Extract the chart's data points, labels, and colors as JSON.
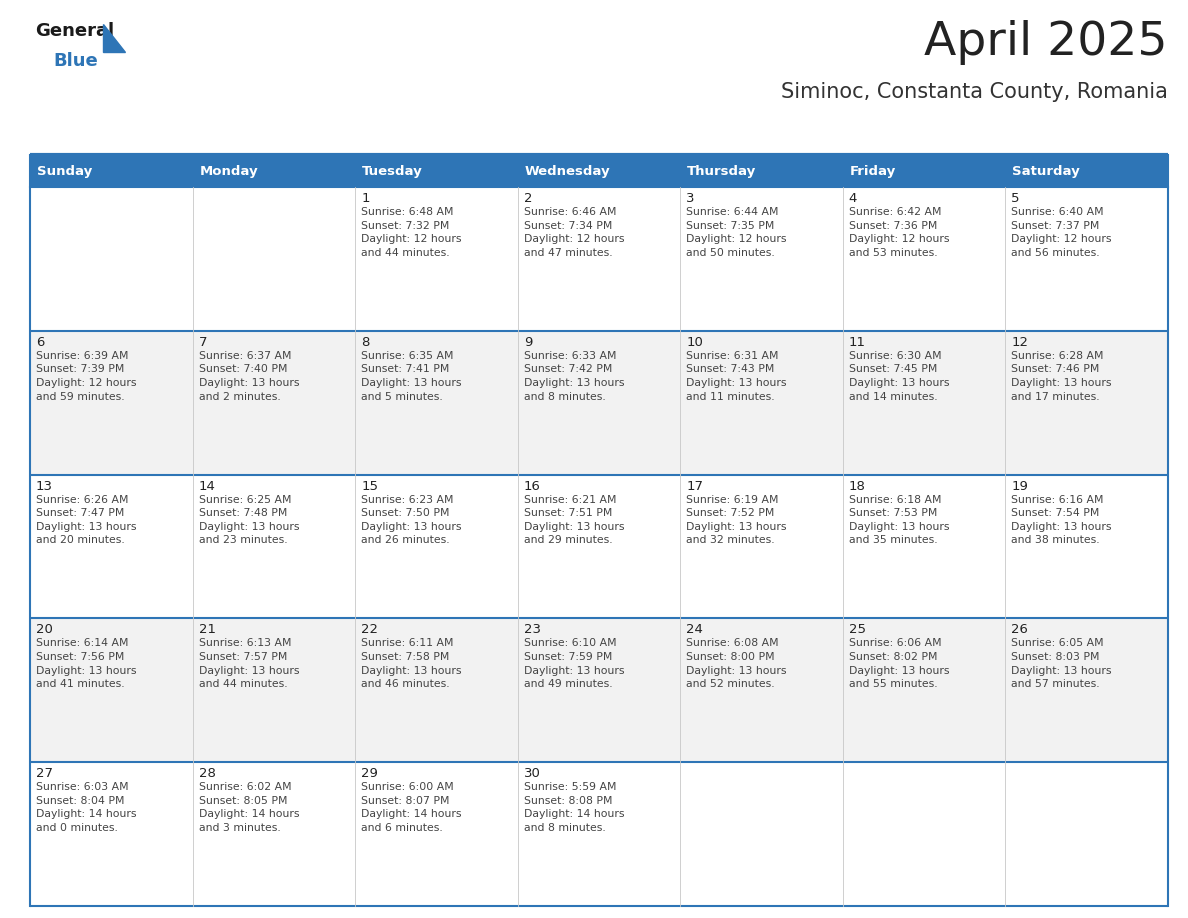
{
  "title": "April 2025",
  "subtitle": "Siminoc, Constanta County, Romania",
  "header_bg_color": "#2E75B6",
  "header_text_color": "#FFFFFF",
  "border_color": "#2E75B6",
  "row_colors": [
    "#FFFFFF",
    "#F2F2F2",
    "#FFFFFF",
    "#F2F2F2",
    "#FFFFFF"
  ],
  "day_headers": [
    "Sunday",
    "Monday",
    "Tuesday",
    "Wednesday",
    "Thursday",
    "Friday",
    "Saturday"
  ],
  "title_color": "#222222",
  "subtitle_color": "#333333",
  "cell_text_color": "#444444",
  "day_num_color": "#222222",
  "logo_general_color": "#1a1a1a",
  "logo_blue_color": "#2E75B6",
  "logo_triangle_color": "#2E75B6",
  "weeks": [
    [
      {
        "day": "",
        "info": ""
      },
      {
        "day": "",
        "info": ""
      },
      {
        "day": "1",
        "info": "Sunrise: 6:48 AM\nSunset: 7:32 PM\nDaylight: 12 hours\nand 44 minutes."
      },
      {
        "day": "2",
        "info": "Sunrise: 6:46 AM\nSunset: 7:34 PM\nDaylight: 12 hours\nand 47 minutes."
      },
      {
        "day": "3",
        "info": "Sunrise: 6:44 AM\nSunset: 7:35 PM\nDaylight: 12 hours\nand 50 minutes."
      },
      {
        "day": "4",
        "info": "Sunrise: 6:42 AM\nSunset: 7:36 PM\nDaylight: 12 hours\nand 53 minutes."
      },
      {
        "day": "5",
        "info": "Sunrise: 6:40 AM\nSunset: 7:37 PM\nDaylight: 12 hours\nand 56 minutes."
      }
    ],
    [
      {
        "day": "6",
        "info": "Sunrise: 6:39 AM\nSunset: 7:39 PM\nDaylight: 12 hours\nand 59 minutes."
      },
      {
        "day": "7",
        "info": "Sunrise: 6:37 AM\nSunset: 7:40 PM\nDaylight: 13 hours\nand 2 minutes."
      },
      {
        "day": "8",
        "info": "Sunrise: 6:35 AM\nSunset: 7:41 PM\nDaylight: 13 hours\nand 5 minutes."
      },
      {
        "day": "9",
        "info": "Sunrise: 6:33 AM\nSunset: 7:42 PM\nDaylight: 13 hours\nand 8 minutes."
      },
      {
        "day": "10",
        "info": "Sunrise: 6:31 AM\nSunset: 7:43 PM\nDaylight: 13 hours\nand 11 minutes."
      },
      {
        "day": "11",
        "info": "Sunrise: 6:30 AM\nSunset: 7:45 PM\nDaylight: 13 hours\nand 14 minutes."
      },
      {
        "day": "12",
        "info": "Sunrise: 6:28 AM\nSunset: 7:46 PM\nDaylight: 13 hours\nand 17 minutes."
      }
    ],
    [
      {
        "day": "13",
        "info": "Sunrise: 6:26 AM\nSunset: 7:47 PM\nDaylight: 13 hours\nand 20 minutes."
      },
      {
        "day": "14",
        "info": "Sunrise: 6:25 AM\nSunset: 7:48 PM\nDaylight: 13 hours\nand 23 minutes."
      },
      {
        "day": "15",
        "info": "Sunrise: 6:23 AM\nSunset: 7:50 PM\nDaylight: 13 hours\nand 26 minutes."
      },
      {
        "day": "16",
        "info": "Sunrise: 6:21 AM\nSunset: 7:51 PM\nDaylight: 13 hours\nand 29 minutes."
      },
      {
        "day": "17",
        "info": "Sunrise: 6:19 AM\nSunset: 7:52 PM\nDaylight: 13 hours\nand 32 minutes."
      },
      {
        "day": "18",
        "info": "Sunrise: 6:18 AM\nSunset: 7:53 PM\nDaylight: 13 hours\nand 35 minutes."
      },
      {
        "day": "19",
        "info": "Sunrise: 6:16 AM\nSunset: 7:54 PM\nDaylight: 13 hours\nand 38 minutes."
      }
    ],
    [
      {
        "day": "20",
        "info": "Sunrise: 6:14 AM\nSunset: 7:56 PM\nDaylight: 13 hours\nand 41 minutes."
      },
      {
        "day": "21",
        "info": "Sunrise: 6:13 AM\nSunset: 7:57 PM\nDaylight: 13 hours\nand 44 minutes."
      },
      {
        "day": "22",
        "info": "Sunrise: 6:11 AM\nSunset: 7:58 PM\nDaylight: 13 hours\nand 46 minutes."
      },
      {
        "day": "23",
        "info": "Sunrise: 6:10 AM\nSunset: 7:59 PM\nDaylight: 13 hours\nand 49 minutes."
      },
      {
        "day": "24",
        "info": "Sunrise: 6:08 AM\nSunset: 8:00 PM\nDaylight: 13 hours\nand 52 minutes."
      },
      {
        "day": "25",
        "info": "Sunrise: 6:06 AM\nSunset: 8:02 PM\nDaylight: 13 hours\nand 55 minutes."
      },
      {
        "day": "26",
        "info": "Sunrise: 6:05 AM\nSunset: 8:03 PM\nDaylight: 13 hours\nand 57 minutes."
      }
    ],
    [
      {
        "day": "27",
        "info": "Sunrise: 6:03 AM\nSunset: 8:04 PM\nDaylight: 14 hours\nand 0 minutes."
      },
      {
        "day": "28",
        "info": "Sunrise: 6:02 AM\nSunset: 8:05 PM\nDaylight: 14 hours\nand 3 minutes."
      },
      {
        "day": "29",
        "info": "Sunrise: 6:00 AM\nSunset: 8:07 PM\nDaylight: 14 hours\nand 6 minutes."
      },
      {
        "day": "30",
        "info": "Sunrise: 5:59 AM\nSunset: 8:08 PM\nDaylight: 14 hours\nand 8 minutes."
      },
      {
        "day": "",
        "info": ""
      },
      {
        "day": "",
        "info": ""
      },
      {
        "day": "",
        "info": ""
      }
    ]
  ]
}
